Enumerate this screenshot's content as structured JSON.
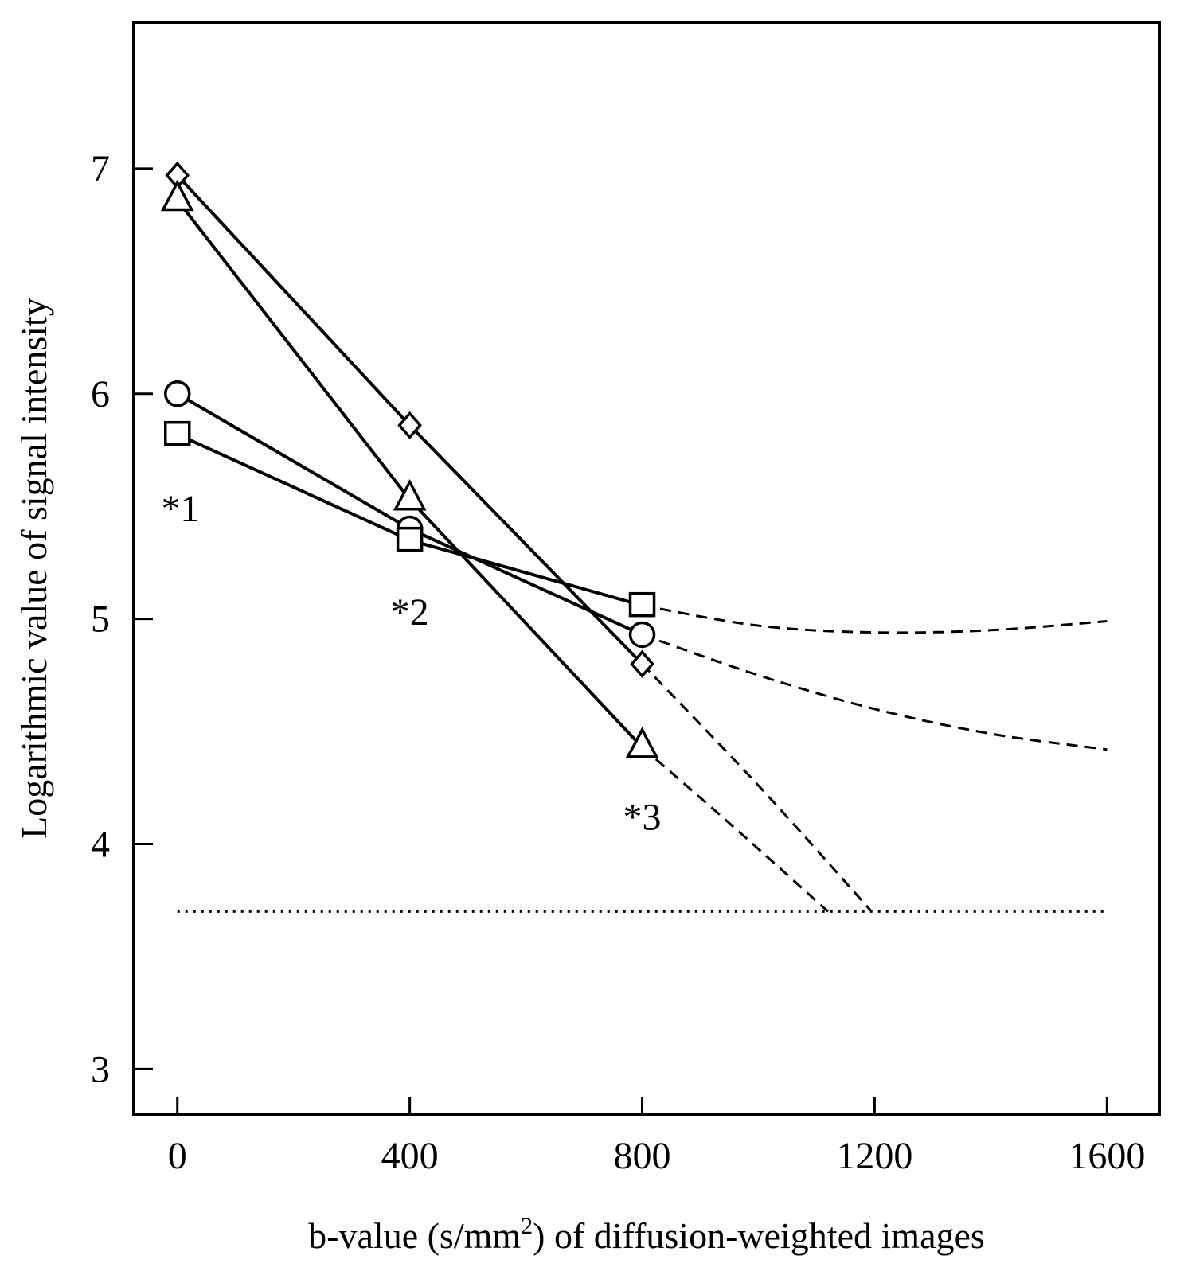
{
  "chart_data": {
    "type": "line",
    "title": "",
    "xlabel": "b-value (s/mm",
    "xlabel_sup": "2",
    "xlabel_rest": ") of diffusion-weighted images",
    "ylabel": "Logarithmic value of signal intensity",
    "xlim": [
      -75,
      1690
    ],
    "ylim": [
      2.8,
      7.65
    ],
    "xticks": [
      0,
      400,
      800,
      1200,
      1600
    ],
    "xtick_labels": [
      "0",
      "400",
      "800",
      "1200",
      "1600"
    ],
    "yticks": [
      3,
      4,
      5,
      6,
      7
    ],
    "ytick_labels": [
      "3",
      "4",
      "5",
      "6",
      "7"
    ],
    "grid": false,
    "series": [
      {
        "name": "diamond",
        "marker": "diamond",
        "x": [
          0,
          400,
          800
        ],
        "y": [
          6.97,
          5.86,
          4.8
        ],
        "extrapolation": {
          "x": [
            800,
            1000,
            1195
          ],
          "y": [
            4.8,
            4.26,
            3.7
          ]
        }
      },
      {
        "name": "triangle",
        "marker": "triangle",
        "x": [
          0,
          400,
          800
        ],
        "y": [
          6.86,
          5.53,
          4.43
        ],
        "extrapolation": {
          "x": [
            800,
            960,
            1120
          ],
          "y": [
            4.43,
            4.07,
            3.7
          ]
        }
      },
      {
        "name": "circle",
        "marker": "circle",
        "x": [
          0,
          400,
          800
        ],
        "y": [
          6.0,
          5.4,
          4.93
        ],
        "extrapolation": {
          "x": [
            800,
            1000,
            1200,
            1400,
            1600
          ],
          "y": [
            4.93,
            4.75,
            4.6,
            4.49,
            4.42
          ]
        }
      },
      {
        "name": "square",
        "marker": "square",
        "x": [
          0,
          400,
          800
        ],
        "y": [
          5.82,
          5.35,
          5.06
        ],
        "extrapolation": {
          "x": [
            800,
            1000,
            1200,
            1400,
            1600
          ],
          "y": [
            5.06,
            4.97,
            4.94,
            4.95,
            4.99
          ]
        }
      }
    ],
    "reference_line": {
      "style": "dotted",
      "x": [
        0,
        1600
      ],
      "y": 3.7
    },
    "annotations": [
      {
        "text": "*1",
        "x": 5,
        "y": 5.49
      },
      {
        "text": "*2",
        "x": 400,
        "y": 5.03
      },
      {
        "text": "*3",
        "x": 800,
        "y": 4.12
      }
    ]
  }
}
